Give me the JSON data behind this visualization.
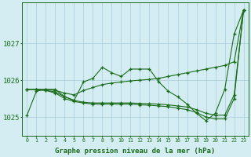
{
  "title": "Graphe pression niveau de la mer (hPa)",
  "background_color": "#d4edf2",
  "grid_color": "#a8cdd6",
  "line_color": "#1a6b1a",
  "xlim": [
    -0.5,
    23.5
  ],
  "ylim": [
    1024.5,
    1028.1
  ],
  "yticks": [
    1025,
    1026,
    1027
  ],
  "xtick_labels": [
    "0",
    "1",
    "2",
    "3",
    "4",
    "5",
    "6",
    "7",
    "8",
    "9",
    "10",
    "11",
    "12",
    "13",
    "14",
    "15",
    "16",
    "17",
    "18",
    "19",
    "20",
    "21",
    "22",
    "23"
  ],
  "series": [
    [
      1025.05,
      1025.7,
      1025.75,
      1025.75,
      1025.55,
      1025.45,
      1025.95,
      1026.05,
      1026.35,
      1026.2,
      1026.1,
      1026.3,
      1026.3,
      1026.3,
      1025.95,
      1025.7,
      1025.55,
      1025.35,
      1025.1,
      1024.9,
      1025.1,
      1025.75,
      1027.25,
      1027.9
    ],
    [
      1025.75,
      1025.75,
      1025.75,
      1025.72,
      1025.65,
      1025.6,
      1025.72,
      1025.8,
      1025.88,
      1025.92,
      1025.95,
      1025.98,
      1026.0,
      1026.02,
      1026.05,
      1026.1,
      1026.15,
      1026.2,
      1026.25,
      1026.3,
      1026.35,
      1026.4,
      1026.5,
      1027.9
    ],
    [
      1025.75,
      1025.75,
      1025.72,
      1025.68,
      1025.55,
      1025.45,
      1025.4,
      1025.38,
      1025.38,
      1025.38,
      1025.38,
      1025.38,
      1025.37,
      1025.36,
      1025.35,
      1025.33,
      1025.3,
      1025.27,
      1025.2,
      1025.1,
      1025.05,
      1025.05,
      1025.6,
      1027.9
    ],
    [
      1025.75,
      1025.75,
      1025.72,
      1025.65,
      1025.5,
      1025.42,
      1025.38,
      1025.35,
      1025.35,
      1025.35,
      1025.35,
      1025.35,
      1025.33,
      1025.32,
      1025.3,
      1025.28,
      1025.24,
      1025.2,
      1025.12,
      1025.0,
      1024.95,
      1024.95,
      1025.5,
      1027.9
    ]
  ]
}
